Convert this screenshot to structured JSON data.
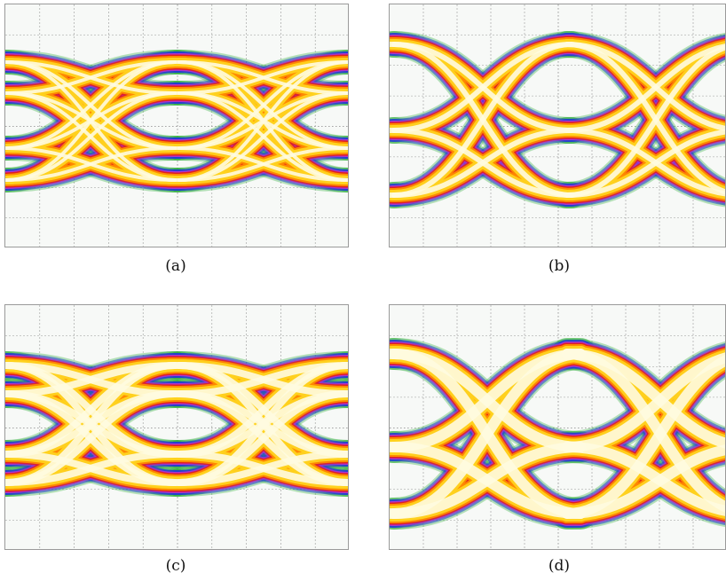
{
  "figure": {
    "panels": [
      {
        "label": "(a)",
        "kind": "eye-diagram",
        "levels": 4
      },
      {
        "label": "(b)",
        "kind": "eye-diagram",
        "levels": 3
      },
      {
        "label": "(c)",
        "kind": "eye-diagram",
        "levels": 4
      },
      {
        "label": "(d)",
        "kind": "eye-diagram",
        "levels": 3
      }
    ]
  },
  "colors": {
    "background": "#f7f9f7",
    "grid": "#9a9a9a",
    "trace_core": "#fffbe0",
    "trace_mid": "#ffd21e",
    "trace_warm": "#ff8a00",
    "trace_hot": "#e02020",
    "trace_edge": "#b030d0",
    "trace_outer": "#2040d0",
    "trace_fringe": "#30b040"
  }
}
